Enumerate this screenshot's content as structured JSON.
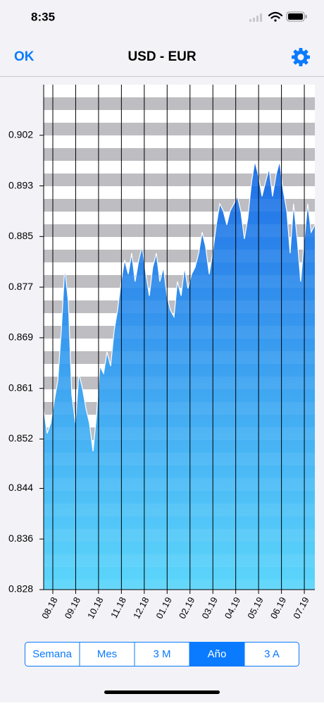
{
  "status_bar": {
    "time": "8:35"
  },
  "nav_bar": {
    "left_button": "OK",
    "title": "USD - EUR"
  },
  "chart_data": {
    "type": "area",
    "x": [
      -0.4,
      -0.25,
      -0.09,
      0.06,
      0.22,
      0.37,
      0.52,
      0.68,
      0.83,
      0.99,
      1.14,
      1.29,
      1.45,
      1.6,
      1.76,
      1.91,
      2.06,
      2.22,
      2.37,
      2.53,
      2.68,
      2.83,
      2.99,
      3.14,
      3.3,
      3.45,
      3.6,
      3.76,
      3.91,
      4.07,
      4.22,
      4.37,
      4.53,
      4.68,
      4.84,
      4.99,
      5.14,
      5.3,
      5.45,
      5.61,
      5.76,
      5.91,
      6.07,
      6.22,
      6.38,
      6.53,
      6.68,
      6.84,
      6.99,
      7.15,
      7.3,
      7.45,
      7.61,
      7.76,
      7.92,
      8.07,
      8.22,
      8.38,
      8.53,
      8.69,
      8.84,
      8.99,
      9.15,
      9.3,
      9.46,
      9.61,
      9.76,
      9.92,
      10.07,
      10.23,
      10.38,
      10.53,
      10.69,
      10.84,
      11.0,
      11.15,
      11.3,
      11.46
    ],
    "values": [
      0.8573,
      0.8533,
      0.855,
      0.8585,
      0.8619,
      0.8699,
      0.8802,
      0.8745,
      0.8596,
      0.855,
      0.863,
      0.8607,
      0.8573,
      0.855,
      0.8504,
      0.8562,
      0.8642,
      0.863,
      0.8665,
      0.8642,
      0.8699,
      0.8733,
      0.8779,
      0.8814,
      0.8791,
      0.8825,
      0.8779,
      0.8814,
      0.8836,
      0.8791,
      0.8756,
      0.8802,
      0.8825,
      0.8779,
      0.8802,
      0.8756,
      0.8733,
      0.8722,
      0.8779,
      0.8756,
      0.8802,
      0.8768,
      0.8791,
      0.8802,
      0.8825,
      0.8859,
      0.8836,
      0.8791,
      0.8825,
      0.8871,
      0.8905,
      0.8894,
      0.8871,
      0.8894,
      0.8905,
      0.8917,
      0.8894,
      0.8848,
      0.8882,
      0.894,
      0.8974,
      0.8951,
      0.8917,
      0.894,
      0.8962,
      0.8917,
      0.8951,
      0.8974,
      0.8928,
      0.8894,
      0.8825,
      0.8905,
      0.8848,
      0.8779,
      0.8848,
      0.8905,
      0.8859,
      0.8871
    ],
    "color": "#2a7fe8",
    "xlim": [
      -0.4,
      11.46
    ],
    "xticks": [
      {
        "value": 0,
        "label": "08.18"
      },
      {
        "value": 1,
        "label": "09.18"
      },
      {
        "value": 2,
        "label": "10.18"
      },
      {
        "value": 3,
        "label": "11.18"
      },
      {
        "value": 4,
        "label": "12.18"
      },
      {
        "value": 5,
        "label": "01.19"
      },
      {
        "value": 6,
        "label": "02.19"
      },
      {
        "value": 7,
        "label": "03.19"
      },
      {
        "value": 8,
        "label": "04.19"
      },
      {
        "value": 9,
        "label": "05.19"
      },
      {
        "value": 10,
        "label": "06.19"
      },
      {
        "value": 11,
        "label": "07.19"
      }
    ],
    "ylim": [
      0.828,
      0.9098
    ],
    "yticks": [
      0.828,
      {
        "value": 0.8362,
        "label": "0.836"
      },
      {
        "value": 0.8444,
        "label": "0.844"
      },
      {
        "value": 0.8524,
        "label": "0.852"
      },
      {
        "value": 0.8606,
        "label": "0.861"
      },
      {
        "value": 0.8688,
        "label": "0.869"
      },
      0.877,
      {
        "value": 0.8852,
        "label": "0.885"
      },
      {
        "value": 0.8934,
        "label": "0.893"
      },
      {
        "value": 0.9016,
        "label": "0.902"
      }
    ],
    "grid": true
  },
  "segmented_control": {
    "options": [
      "Semana",
      "Mes",
      "3 M",
      "Año",
      "3 A"
    ],
    "selected": 3
  }
}
